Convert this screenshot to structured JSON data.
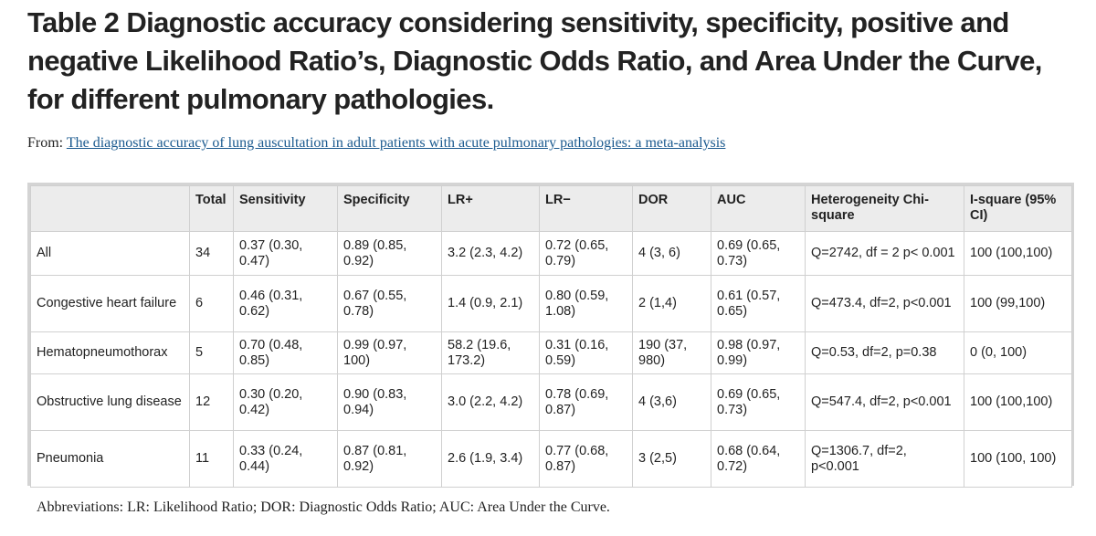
{
  "title": "Table 2 Diagnostic accuracy considering sensitivity, specificity, positive and negative Likelihood Ratio’s, Diagnostic Odds Ratio, and Area Under the Curve, for different pulmonary pathologies.",
  "from_label": "From:",
  "from_link": "The diagnostic accuracy of lung auscultation in adult patients with acute pulmonary pathologies: a meta-analysis",
  "table": {
    "headers": [
      "",
      "Total",
      "Sensitivity",
      "Specificity",
      "LR+",
      "LR−",
      "DOR",
      "AUC",
      "Heterogeneity Chi-square",
      "I-square (95% CI)"
    ],
    "rows": [
      [
        "All",
        "34",
        "0.37 (0.30, 0.47)",
        "0.89 (0.85, 0.92)",
        "3.2 (2.3, 4.2)",
        "0.72 (0.65, 0.79)",
        "4 (3, 6)",
        "0.69 (0.65, 0.73)",
        "Q=2742, df = 2 p< 0.001",
        "100 (100,100)"
      ],
      [
        "Congestive heart failure",
        "6",
        "0.46 (0.31, 0.62)",
        "0.67 (0.55, 0.78)",
        "1.4 (0.9, 2.1)",
        "0.80 (0.59, 1.08)",
        "2 (1,4)",
        "0.61 (0.57, 0.65)",
        "Q=473.4, df=2, p<0.001",
        "100 (99,100)"
      ],
      [
        "Hematopneumothorax",
        "5",
        "0.70 (0.48, 0.85)",
        "0.99 (0.97, 100)",
        "58.2 (19.6, 173.2)",
        "0.31 (0.16, 0.59)",
        "190 (37, 980)",
        "0.98 (0.97, 0.99)",
        "Q=0.53, df=2, p=0.38",
        "0 (0, 100)"
      ],
      [
        "Obstructive lung disease",
        "12",
        "0.30 (0.20, 0.42)",
        "0.90 (0.83, 0.94)",
        "3.0 (2.2, 4.2)",
        "0.78 (0.69, 0.87)",
        "4 (3,6)",
        "0.69 (0.65, 0.73)",
        "Q=547.4, df=2, p<0.001",
        "100 (100,100)"
      ],
      [
        "Pneumonia",
        "11",
        "0.33 (0.24, 0.44)",
        "0.87 (0.81, 0.92)",
        "2.6 (1.9, 3.4)",
        "0.77 (0.68, 0.87)",
        "3 (2,5)",
        "0.68 (0.64, 0.72)",
        "Q=1306.7, df=2, p<0.001",
        "100 (100, 100)"
      ]
    ]
  },
  "footnote": "Abbreviations: LR: Likelihood Ratio; DOR: Diagnostic Odds Ratio; AUC: Area Under the Curve."
}
